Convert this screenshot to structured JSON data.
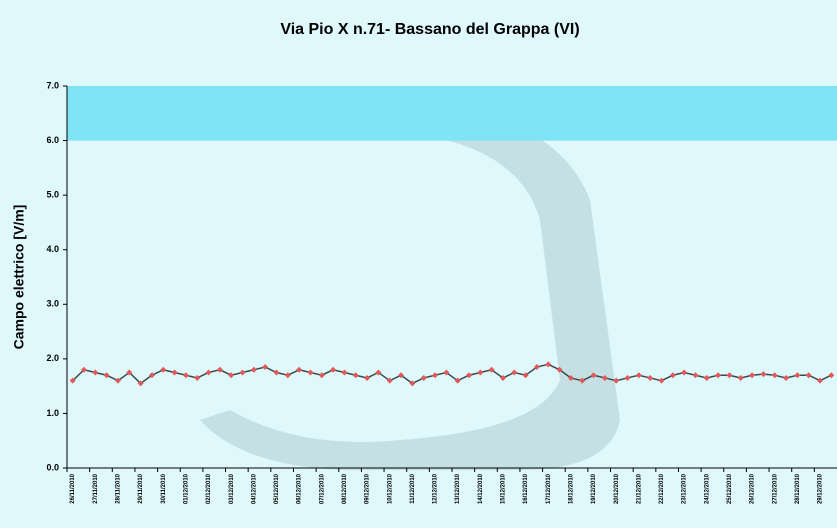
{
  "chart_data": {
    "type": "line",
    "title": "Via Pio X n.71- Bassano del Grappa (VI)",
    "y_label": "Campo elettrico [V/m]",
    "band": {
      "range": [
        6,
        7
      ],
      "color": "#7fe4f6"
    },
    "categories": [
      "26/11/2010",
      null,
      "27/11/2010",
      null,
      "28/11/2010",
      null,
      "29/11/2010",
      null,
      "30/11/2010",
      null,
      "01/12/2010",
      null,
      "02/12/2010",
      null,
      "03/12/2010",
      null,
      "04/12/2010",
      null,
      "05/12/2010",
      null,
      "06/12/2010",
      null,
      "07/12/2010",
      null,
      "08/12/2010",
      null,
      "09/12/2010",
      null,
      "10/12/2010",
      null,
      "11/12/2010",
      null,
      "12/12/2010",
      null,
      "13/12/2010",
      null,
      "14/12/2010",
      null,
      "15/12/2010",
      null,
      "16/12/2010",
      null,
      "17/12/2010",
      null,
      "18/12/2010",
      null,
      "19/12/2010",
      null,
      "20/12/2010",
      null,
      "21/12/2010",
      null,
      "22/12/2010",
      null,
      "23/12/2010",
      null,
      "24/12/2010",
      null,
      "25/12/2010",
      null,
      "26/12/2010",
      null,
      "27/12/2010",
      null,
      "28/12/2010",
      null,
      "29/12/2010",
      null
    ],
    "series": [
      {
        "color": "#e05a5a",
        "line_color": "#3a4a4a",
        "values": [
          1.6,
          1.8,
          1.75,
          1.7,
          1.6,
          1.75,
          1.55,
          1.7,
          1.8,
          1.75,
          1.7,
          1.65,
          1.75,
          1.8,
          1.7,
          1.75,
          1.8,
          1.85,
          1.75,
          1.7,
          1.8,
          1.75,
          1.7,
          1.8,
          1.75,
          1.7,
          1.65,
          1.75,
          1.6,
          1.7,
          1.55,
          1.65,
          1.7,
          1.75,
          1.6,
          1.7,
          1.75,
          1.8,
          1.65,
          1.75,
          1.7,
          1.85,
          1.9,
          1.8,
          1.65,
          1.6,
          1.7,
          1.65,
          1.6,
          1.65,
          1.7,
          1.65,
          1.6,
          1.7,
          1.75,
          1.7,
          1.65,
          1.7,
          1.7,
          1.65,
          1.7,
          1.72,
          1.7,
          1.65,
          1.7,
          1.7,
          1.6,
          1.7
        ]
      }
    ],
    "ylim": [
      0,
      7
    ],
    "yticks": [
      {
        "value": 0,
        "label": "0.0"
      },
      {
        "value": 1,
        "label": "1.0"
      },
      {
        "value": 2,
        "label": "2.0"
      },
      {
        "value": 3,
        "label": "3.0"
      },
      {
        "value": 4,
        "label": "4.0"
      },
      {
        "value": 5,
        "label": "5.0"
      },
      {
        "value": 6,
        "label": "6.0"
      },
      {
        "value": 7,
        "label": "7.0"
      }
    ]
  }
}
